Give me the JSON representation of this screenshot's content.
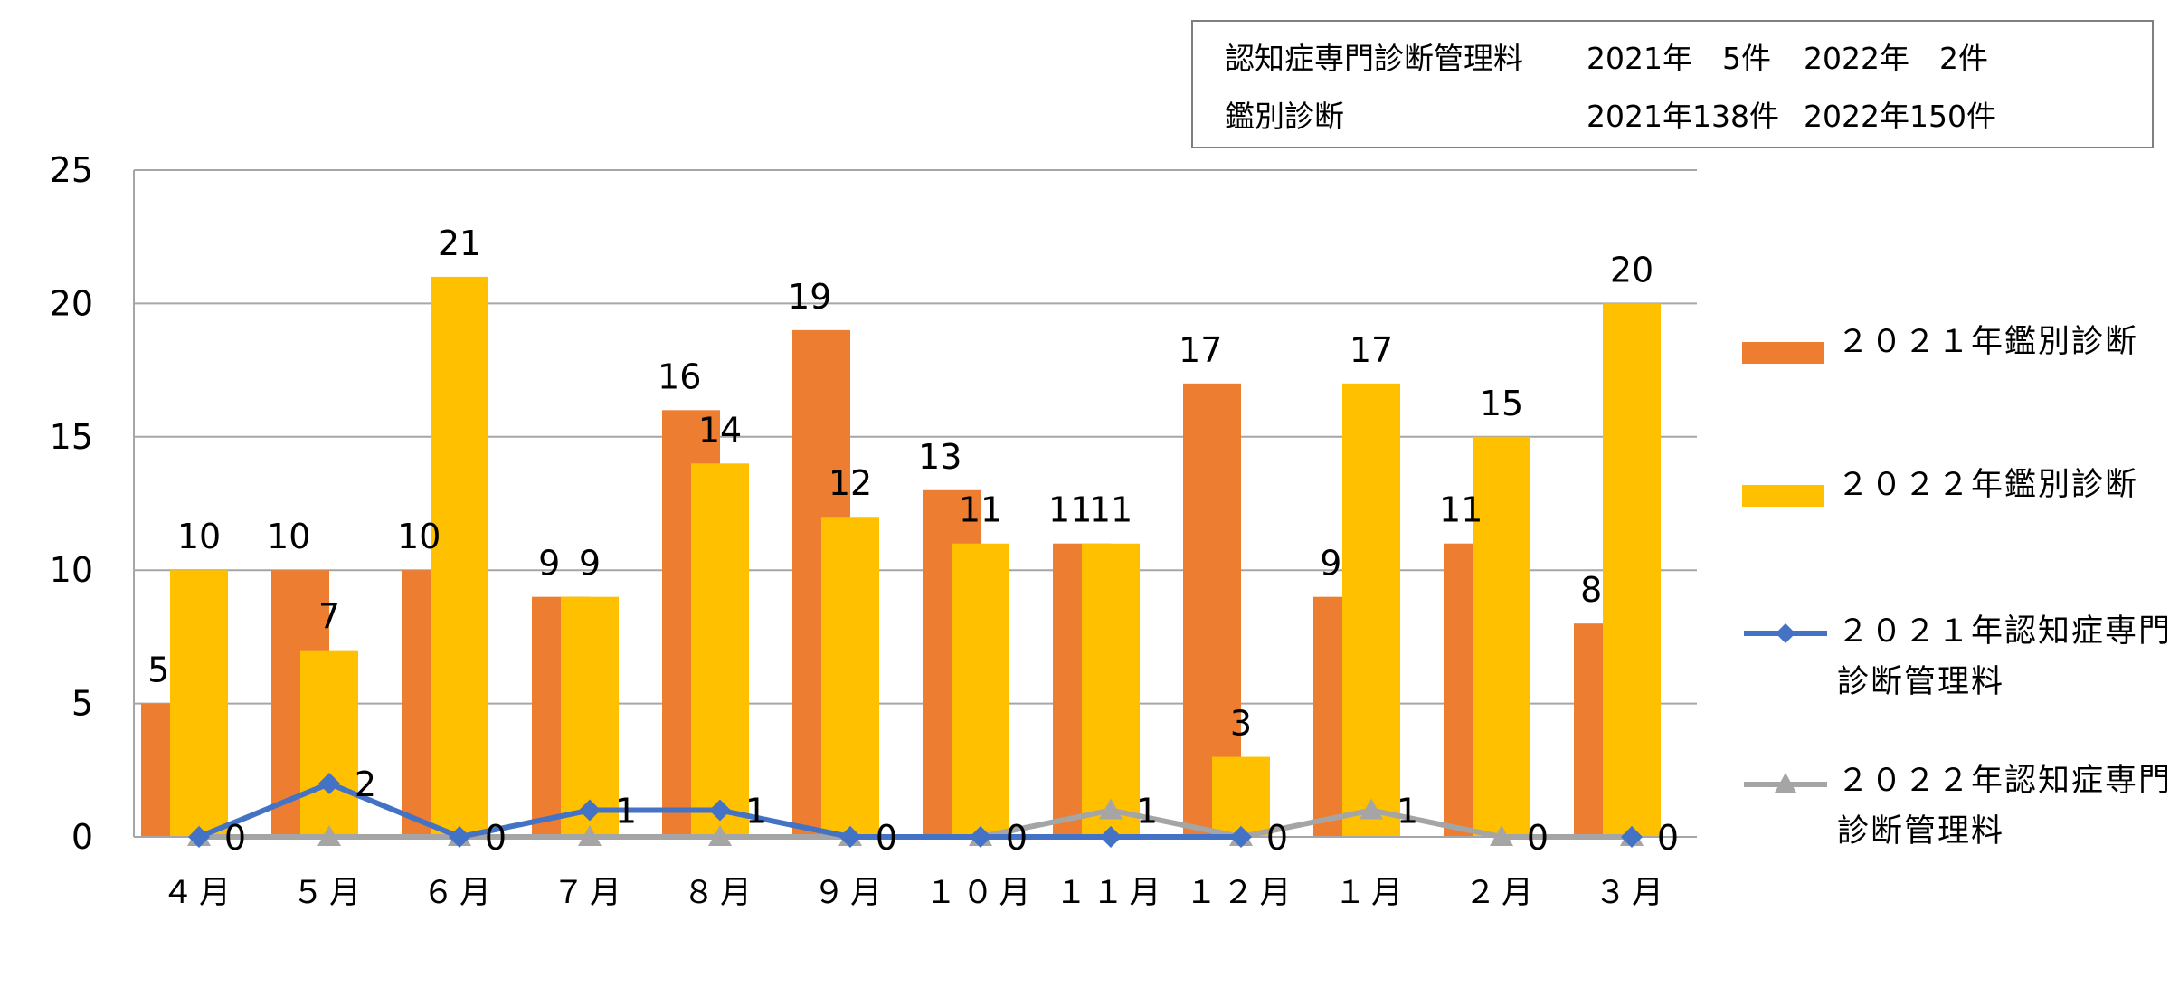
{
  "summary_table": {
    "rows": [
      {
        "label": "認知症専門診断管理料",
        "y2021": "2021年　5件",
        "y2022": "2022年　2件"
      },
      {
        "label": "鑑別診断",
        "y2021": "2021年138件",
        "y2022": "2022年150件"
      }
    ]
  },
  "chart_data": {
    "type": "bar",
    "title": "",
    "xlabel": "",
    "ylabel": "",
    "ylim": [
      0,
      25
    ],
    "yticks": [
      0,
      5,
      10,
      15,
      20,
      25
    ],
    "grid": true,
    "legend_position": "right",
    "categories": [
      "４月",
      "５月",
      "６月",
      "７月",
      "８月",
      "９月",
      "１０月",
      "１１月",
      "１２月",
      "１月",
      "２月",
      "３月"
    ],
    "series": [
      {
        "name": "２０２１年鑑別診断",
        "type": "bar",
        "color": "#ED7D31",
        "values": [
          5,
          10,
          10,
          9,
          16,
          19,
          13,
          11,
          17,
          9,
          11,
          8
        ]
      },
      {
        "name": "２０２２年鑑別診断",
        "type": "bar",
        "color": "#FFC000",
        "values": [
          10,
          7,
          21,
          9,
          14,
          12,
          11,
          11,
          3,
          17,
          15,
          20
        ]
      },
      {
        "name": "２０２１年認知症専門診断管理料",
        "type": "line",
        "marker": "diamond",
        "color": "#4472C4",
        "values": [
          0,
          2,
          0,
          1,
          1,
          0,
          0,
          0,
          0,
          null,
          null,
          0
        ]
      },
      {
        "name": "２０２２年認知症専門診断管理料",
        "type": "line",
        "marker": "triangle",
        "color": "#A5A5A5",
        "values": [
          0,
          0,
          0,
          0,
          0,
          0,
          0,
          1,
          0,
          1,
          0,
          0
        ]
      }
    ]
  }
}
